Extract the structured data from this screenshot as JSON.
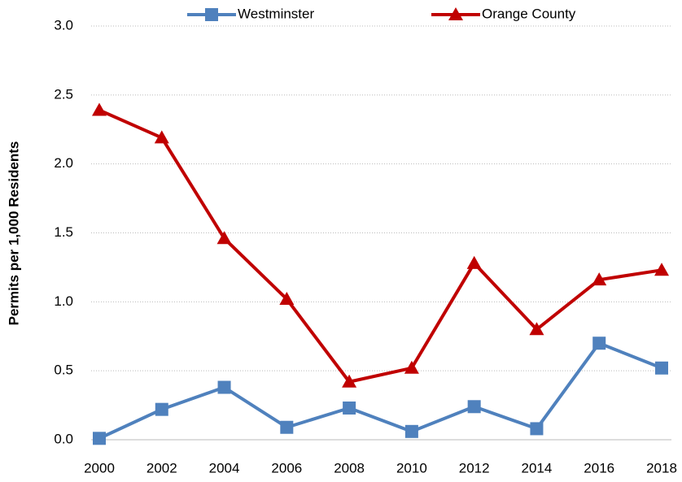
{
  "chart_data": {
    "type": "line",
    "y_label": "Permits per 1,000 Residents",
    "categories": [
      "2000",
      "2002",
      "2004",
      "2006",
      "2008",
      "2010",
      "2012",
      "2014",
      "2016",
      "2018"
    ],
    "series": [
      {
        "name": "Westminster",
        "color": "#4f81bd",
        "marker": "square",
        "values": [
          0.01,
          0.22,
          0.38,
          0.09,
          0.23,
          0.06,
          0.24,
          0.08,
          0.7,
          0.52
        ]
      },
      {
        "name": "Orange County",
        "color": "#c00000",
        "marker": "triangle",
        "values": [
          2.39,
          2.19,
          1.46,
          1.02,
          0.42,
          0.52,
          1.28,
          0.8,
          1.16,
          1.23
        ]
      }
    ],
    "ylim": [
      0,
      3.0
    ],
    "yticks": [
      {
        "value": 0,
        "label": "0.0"
      },
      {
        "value": 0.5,
        "label": "0.5"
      },
      {
        "value": 1,
        "label": "1.0"
      },
      {
        "value": 1.5,
        "label": "1.5"
      },
      {
        "value": 2,
        "label": "2.0"
      },
      {
        "value": 2.5,
        "label": "2.5"
      },
      {
        "value": 3,
        "label": "3.0"
      }
    ],
    "grid": true,
    "legend": "top"
  }
}
